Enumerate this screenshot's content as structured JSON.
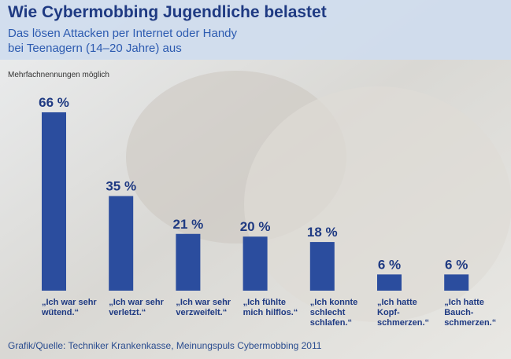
{
  "chart_data": {
    "type": "bar",
    "title": "Wie Cybermobbing Jugendliche belastet",
    "subtitle": [
      "Das lösen Attacken per Internet oder Handy",
      "bei Teenagern (14–20 Jahre) aus"
    ],
    "note": "Mehrfachnennungen möglich",
    "categories": [
      "„Ich war sehr\nwütend.“",
      "„Ich war sehr\nverletzt.“",
      "„Ich war sehr\nverzweifelt.“",
      "„Ich fühlte\nmich hilflos.“",
      "„Ich konnte\nschlecht\nschlafen.“",
      "„Ich hatte\nKopf-\nschmerzen.“",
      "„Ich hatte\nBauch-\nschmerzen.“"
    ],
    "values": [
      66,
      35,
      21,
      20,
      18,
      6,
      6
    ],
    "value_labels": [
      "66 %",
      "35 %",
      "21 %",
      "20 %",
      "18 %",
      "6 %",
      "6 %"
    ],
    "color": "#2b4d9e",
    "source": "Grafik/Quelle: Techniker Krankenkasse, Meinungspuls Cybermobbing 2011"
  }
}
